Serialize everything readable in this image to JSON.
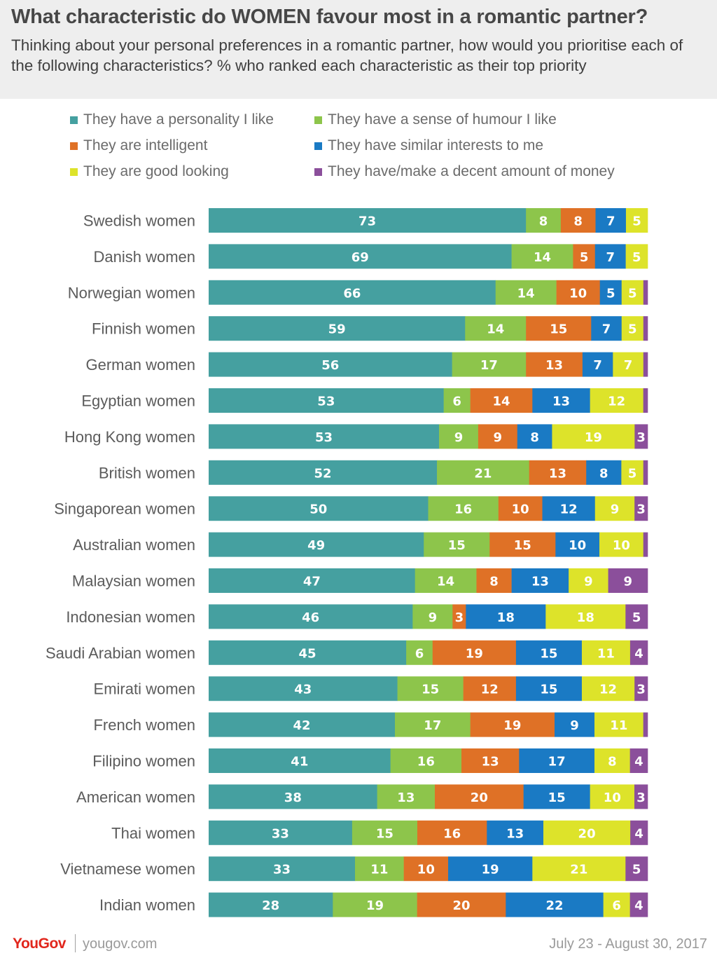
{
  "title": "What characteristic do WOMEN favour most in a romantic partner?",
  "subtitle": "Thinking about your personal preferences in a romantic partner, how would you prioritise each of the following characteristics? % who ranked each characteristic as their top priority",
  "footer": {
    "brand": "YouGov",
    "site": "yougov.com",
    "date": "July 23 - August 30, 2017"
  },
  "chart_data": {
    "type": "bar",
    "orientation": "horizontal-stacked",
    "legend_position": "top",
    "categories": [
      "Swedish women",
      "Danish women",
      "Norwegian women",
      "Finnish women",
      "German women",
      "Egyptian women",
      "Hong Kong women",
      "British women",
      "Singaporean women",
      "Australian women",
      "Malaysian women",
      "Indonesian women",
      "Saudi Arabian women",
      "Emirati women",
      "French women",
      "Filipino women",
      "American women",
      "Thai women",
      "Vietnamese women",
      "Indian women"
    ],
    "series": [
      {
        "name": "They have a personality I like",
        "color": "#45a0a0",
        "values": [
          73,
          69,
          66,
          59,
          56,
          53,
          53,
          52,
          50,
          49,
          47,
          46,
          45,
          43,
          42,
          41,
          38,
          33,
          33,
          28
        ]
      },
      {
        "name": "They have a sense of humour I like",
        "color": "#8dc54b",
        "values": [
          8,
          14,
          14,
          14,
          17,
          6,
          9,
          21,
          16,
          15,
          14,
          9,
          6,
          15,
          17,
          16,
          13,
          15,
          11,
          19
        ]
      },
      {
        "name": "They are intelligent",
        "color": "#df7126",
        "values": [
          8,
          5,
          10,
          15,
          13,
          14,
          9,
          13,
          10,
          15,
          8,
          3,
          19,
          12,
          19,
          13,
          20,
          16,
          10,
          20
        ]
      },
      {
        "name": "They have similar interests to me",
        "color": "#1a7ac4",
        "values": [
          7,
          7,
          5,
          7,
          7,
          13,
          8,
          8,
          12,
          10,
          13,
          18,
          15,
          15,
          9,
          17,
          15,
          13,
          19,
          22
        ]
      },
      {
        "name": "They are good looking",
        "color": "#dde32a",
        "values": [
          5,
          5,
          5,
          5,
          7,
          12,
          19,
          5,
          9,
          10,
          9,
          18,
          11,
          12,
          11,
          8,
          10,
          20,
          21,
          6
        ]
      },
      {
        "name": "They have/make a decent amount of money",
        "color": "#8b4f9b",
        "values": [
          0,
          0,
          1,
          1,
          1,
          1,
          3,
          1,
          3,
          1,
          9,
          5,
          4,
          3,
          1,
          4,
          3,
          4,
          5,
          4
        ],
        "labels": [
          "",
          "",
          "",
          "",
          "",
          "",
          "3",
          "",
          "3",
          "",
          "9",
          "5",
          "4",
          "3",
          "",
          "4",
          "3",
          "4",
          "5",
          "4"
        ]
      }
    ]
  }
}
